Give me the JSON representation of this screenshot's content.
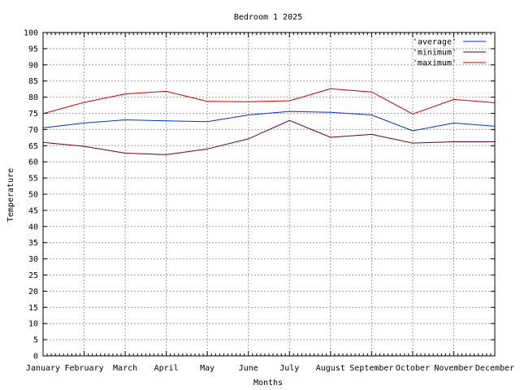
{
  "chart_data": {
    "type": "line",
    "title": "Bedroom 1 2025",
    "xlabel": "Months",
    "ylabel": "Temperature",
    "ylim": [
      0,
      100
    ],
    "ytick_step": 5,
    "yticks": [
      "0",
      "5",
      "10",
      "15",
      "20",
      "25",
      "30",
      "35",
      "40",
      "45",
      "50",
      "55",
      "60",
      "65",
      "70",
      "75",
      "80",
      "85",
      "90",
      "95",
      "100"
    ],
    "grid": true,
    "legend_position": "top-right",
    "categories": [
      "January",
      "February",
      "March",
      "April",
      "May",
      "June",
      "July",
      "August",
      "September",
      "October",
      "November",
      "December"
    ],
    "series": [
      {
        "name": "'average'",
        "color": "#0033cc",
        "values": [
          70.5,
          72.0,
          73.0,
          72.7,
          72.4,
          74.5,
          75.6,
          75.3,
          74.5,
          69.6,
          72.0,
          71.0
        ]
      },
      {
        "name": "'minimum'",
        "color": "#660022",
        "values": [
          66.0,
          64.8,
          62.7,
          62.2,
          64.0,
          67.1,
          72.8,
          67.6,
          68.5,
          65.8,
          66.2,
          66.2
        ]
      },
      {
        "name": "'maximum'",
        "color": "#cc0000",
        "values": [
          74.9,
          78.4,
          81.0,
          81.8,
          78.7,
          78.6,
          78.9,
          82.6,
          81.6,
          74.8,
          79.3,
          78.3
        ]
      }
    ]
  }
}
